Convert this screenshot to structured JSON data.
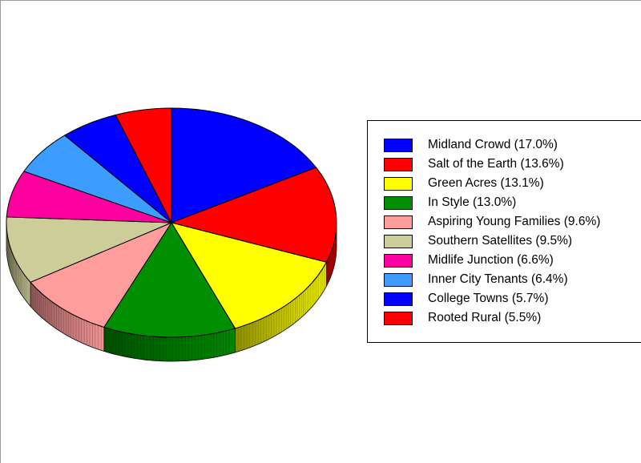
{
  "chart_data": {
    "type": "pie",
    "style": "3d",
    "start": "12 o'clock",
    "direction": "clockwise",
    "legend_position": "right",
    "slices": [
      {
        "label": "Midland Crowd (17.0%)",
        "value": 17.0,
        "color": "#0000ff"
      },
      {
        "label": "Salt of the Earth (13.6%)",
        "value": 13.6,
        "color": "#ff0000"
      },
      {
        "label": "Green Acres (13.1%)",
        "value": 13.1,
        "color": "#ffff00"
      },
      {
        "label": "In Style (13.0%)",
        "value": 13.0,
        "color": "#008f00"
      },
      {
        "label": "Aspiring Young Families (9.6%)",
        "value": 9.6,
        "color": "#ff9c9c"
      },
      {
        "label": "Southern Satellites (9.5%)",
        "value": 9.5,
        "color": "#cdcd9a"
      },
      {
        "label": "Midlife Junction (6.6%)",
        "value": 6.6,
        "color": "#ff00a0"
      },
      {
        "label": "Inner City Tenants (6.4%)",
        "value": 6.4,
        "color": "#3c9cff"
      },
      {
        "label": "College Towns (5.7%)",
        "value": 5.7,
        "color": "#0000ff"
      },
      {
        "label": "Rooted Rural (5.5%)",
        "value": 5.5,
        "color": "#ff0000"
      }
    ]
  }
}
